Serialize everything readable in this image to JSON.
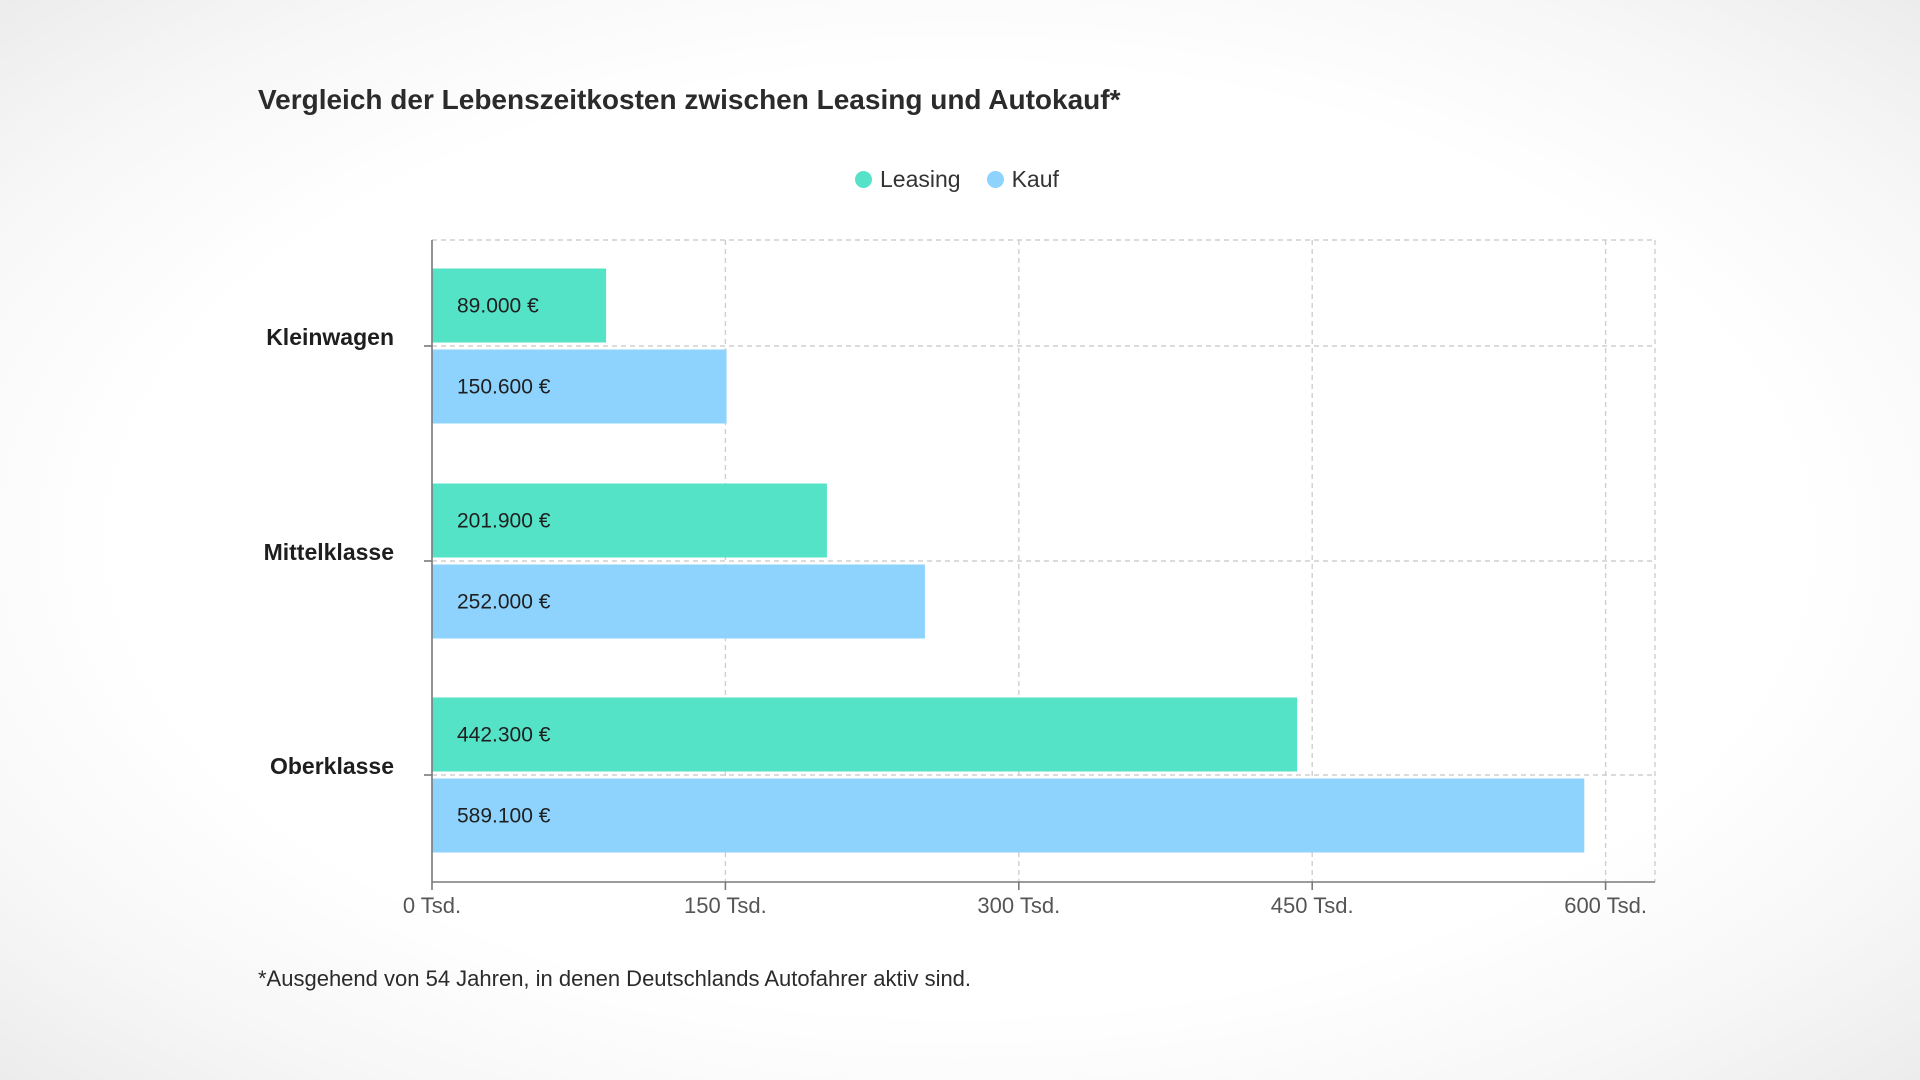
{
  "chart_data": {
    "type": "bar",
    "orientation": "horizontal",
    "title": "Vergleich der Lebenszeitkosten zwischen Leasing und Autokauf*",
    "categories": [
      "Kleinwagen",
      "Mittelklasse",
      "Oberklasse"
    ],
    "series": [
      {
        "name": "Leasing",
        "color": "#55e3c8",
        "values": [
          89000,
          201900,
          442300
        ],
        "labels": [
          "89.000 €",
          "201.900 €",
          "442.300 €"
        ]
      },
      {
        "name": "Kauf",
        "color": "#8dd3fd",
        "values": [
          150600,
          252000,
          589100
        ],
        "labels": [
          "150.600 €",
          "252.000 €",
          "589.100 €"
        ]
      }
    ],
    "xlim": [
      0,
      625000
    ],
    "xticks": [
      0,
      150000,
      300000,
      450000,
      600000
    ],
    "xtick_labels": [
      "0 Tsd.",
      "150 Tsd.",
      "300 Tsd.",
      "450 Tsd.",
      "600 Tsd."
    ],
    "grid": true,
    "legend_position": "top-center",
    "footnote": "*Ausgehend von 54 Jahren, in denen Deutschlands Autofahrer aktiv sind."
  }
}
